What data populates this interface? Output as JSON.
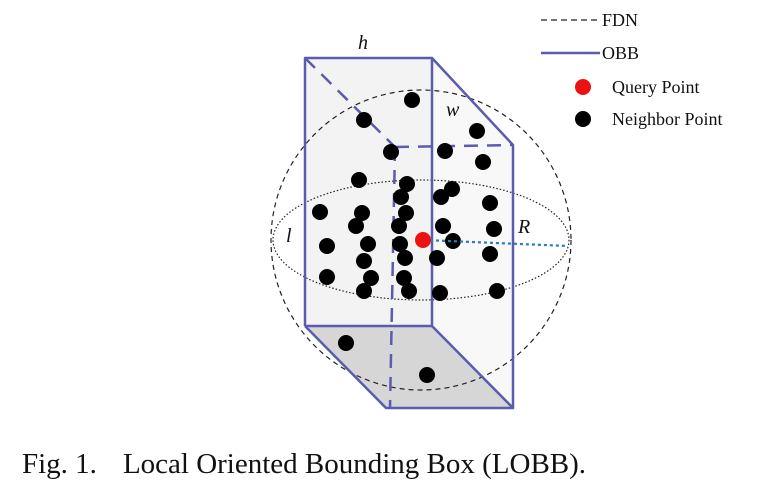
{
  "labels": {
    "h": "h",
    "w": "w",
    "l": "l",
    "R": "R"
  },
  "legend": [
    {
      "key": "fdn",
      "label": "FDN",
      "style": "dashed-line"
    },
    {
      "key": "obb",
      "label": "OBB",
      "style": "solid-line"
    },
    {
      "key": "query",
      "label": "Query Point",
      "style": "red-dot"
    },
    {
      "key": "neighbor",
      "label": "Neighbor Point",
      "style": "black-dot"
    }
  ],
  "caption": {
    "number": "Fig. 1.",
    "text": "Local Oriented Bounding Box (LOBB)."
  },
  "colors": {
    "box": "#5b5bb0",
    "query": "#ee1111",
    "neighbor": "#000000",
    "radius": "#2a7fb8",
    "top_face": "#f2f2f2",
    "bottom_face": "#d6d6d6"
  }
}
